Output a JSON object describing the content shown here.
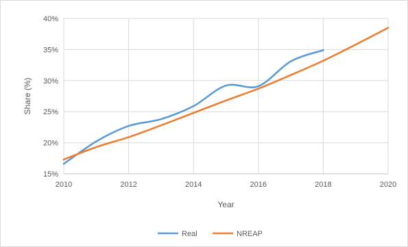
{
  "chart_data": {
    "type": "line",
    "xlabel": "Year",
    "ylabel": "Share (%)",
    "xlim": [
      2010,
      2020
    ],
    "ylim": [
      15,
      40
    ],
    "x_ticks": [
      2010,
      2012,
      2014,
      2016,
      2018,
      2020
    ],
    "x_tick_labels": [
      "2010",
      "2012",
      "2014",
      "2016",
      "2018",
      "2020"
    ],
    "y_ticks": [
      15,
      20,
      25,
      30,
      35,
      40
    ],
    "y_tick_labels": [
      "15%",
      "20%",
      "25%",
      "30%",
      "35%",
      "40%"
    ],
    "grid": "vertical and horizontal major gridlines",
    "legend_position": "bottom",
    "series": [
      {
        "name": "Real",
        "color": "#5b9bd5",
        "x": [
          2010,
          2011,
          2012,
          2013,
          2014,
          2015,
          2016,
          2017,
          2018
        ],
        "values": [
          16.6,
          20.2,
          22.7,
          23.8,
          25.9,
          29.2,
          29.1,
          33.1,
          34.9
        ]
      },
      {
        "name": "NREAP",
        "color": "#ed7d31",
        "x": [
          2010,
          2011,
          2012,
          2013,
          2014,
          2015,
          2016,
          2017,
          2018,
          2019,
          2020
        ],
        "values": [
          17.3,
          19.3,
          20.9,
          22.8,
          24.8,
          26.8,
          28.7,
          30.9,
          33.2,
          35.8,
          38.5
        ]
      }
    ]
  }
}
